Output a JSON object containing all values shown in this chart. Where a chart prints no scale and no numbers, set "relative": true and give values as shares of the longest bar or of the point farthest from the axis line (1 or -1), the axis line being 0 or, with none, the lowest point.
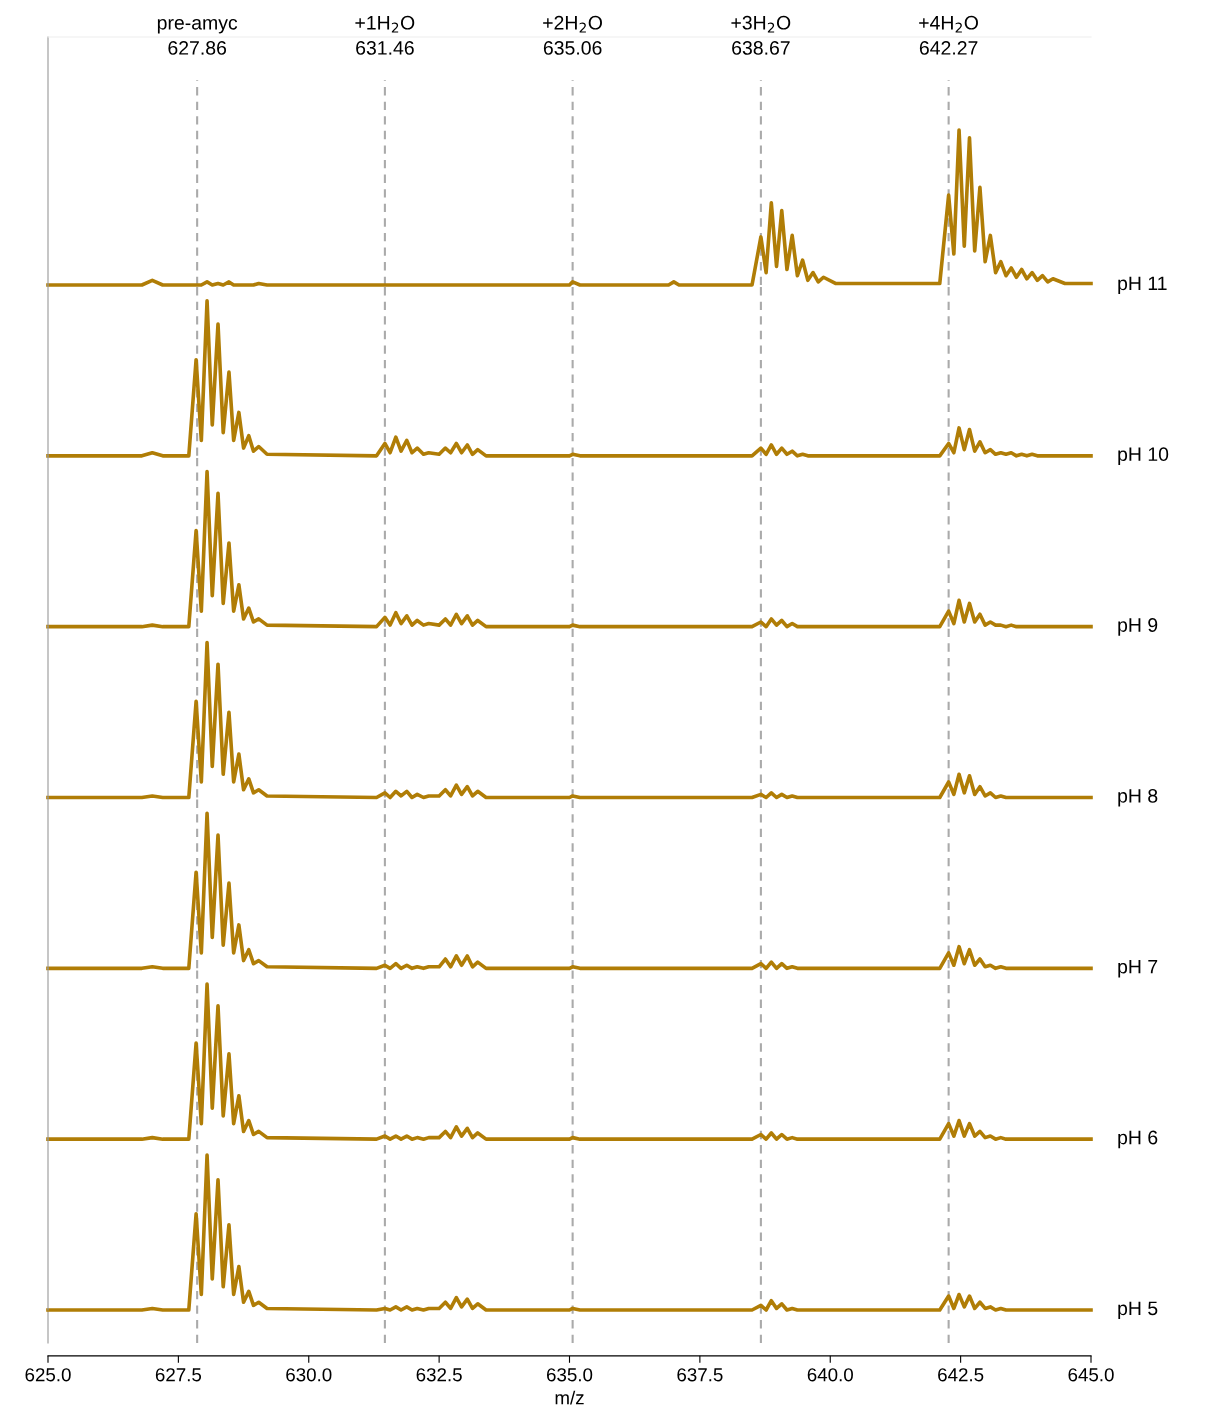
{
  "chart_data": [
    {
      "type": "line",
      "relative": true,
      "tick_labels": false,
      "xlim": [
        625,
        645
      ],
      "x": [
        625.0,
        626.8,
        627.0,
        627.2,
        627.7,
        627.84,
        627.94,
        628.05,
        628.15,
        628.26,
        628.36,
        628.47,
        628.56,
        628.66,
        628.75,
        628.85,
        628.94,
        629.04,
        629.2,
        631.3,
        631.46,
        631.56,
        631.67,
        631.77,
        631.88,
        631.98,
        632.08,
        632.2,
        632.3,
        632.5,
        632.62,
        632.72,
        632.83,
        632.93,
        633.04,
        633.14,
        633.24,
        633.4,
        635.0,
        635.06,
        635.2,
        636.9,
        637.0,
        637.1,
        638.5,
        638.67,
        638.77,
        638.87,
        638.97,
        639.07,
        639.17,
        639.27,
        639.37,
        639.47,
        639.57,
        639.67,
        639.77,
        639.87,
        640.1,
        642.1,
        642.27,
        642.37,
        642.47,
        642.57,
        642.67,
        642.77,
        642.87,
        642.97,
        643.07,
        643.17,
        643.27,
        643.37,
        643.47,
        643.57,
        643.67,
        643.77,
        643.87,
        643.97,
        644.07,
        644.17,
        644.27,
        644.5,
        645.0
      ],
      "series": [
        {
          "name": "pH 11",
          "color": "#b07d06",
          "values": [
            0,
            0,
            0.03,
            0,
            0,
            0,
            0,
            0.02,
            0,
            0.01,
            0,
            0.02,
            0,
            0,
            0,
            0,
            0,
            0.01,
            0,
            0,
            0,
            0,
            0,
            0,
            0,
            0,
            0,
            0,
            0,
            0,
            0,
            0,
            0,
            0,
            0,
            0,
            0,
            0,
            0,
            0.02,
            0,
            0,
            0.02,
            0,
            0,
            0.31,
            0.08,
            0.53,
            0.12,
            0.48,
            0.1,
            0.32,
            0.06,
            0.16,
            0.03,
            0.08,
            0.02,
            0.05,
            0.01,
            0.01,
            0.58,
            0.2,
            1,
            0.25,
            0.95,
            0.22,
            0.63,
            0.15,
            0.32,
            0.08,
            0.15,
            0.06,
            0.11,
            0.05,
            0.1,
            0.04,
            0.08,
            0.03,
            0.06,
            0.02,
            0.04,
            0.01,
            0.01
          ]
        }
      ],
      "ref_lines": [
        {
          "axis": "x",
          "value": 627.86,
          "label": "pre-amyc\n627.86",
          "color": "#aaaaaa",
          "line_style": "dashed"
        },
        {
          "axis": "x",
          "value": 631.46,
          "label": "+1H$_{2}$O\n631.46",
          "color": "#aaaaaa",
          "line_style": "dashed"
        },
        {
          "axis": "x",
          "value": 635.06,
          "label": "+2H$_{2}$O\n635.06",
          "color": "#aaaaaa",
          "line_style": "dashed"
        },
        {
          "axis": "x",
          "value": 638.67,
          "label": "+3H$_{2}$O\n638.67",
          "color": "#aaaaaa",
          "line_style": "dashed"
        },
        {
          "axis": "x",
          "value": 642.27,
          "label": "+4H$_{2}$O\n642.27",
          "color": "#aaaaaa",
          "line_style": "dashed"
        }
      ]
    },
    {
      "type": "line",
      "relative": true,
      "tick_labels": false,
      "xlim": [
        625,
        645
      ],
      "x": [
        625.0,
        626.8,
        627.0,
        627.2,
        627.7,
        627.84,
        627.94,
        628.05,
        628.15,
        628.26,
        628.36,
        628.47,
        628.56,
        628.66,
        628.75,
        628.85,
        628.94,
        629.04,
        629.2,
        631.3,
        631.46,
        631.56,
        631.67,
        631.77,
        631.88,
        631.98,
        632.08,
        632.2,
        632.3,
        632.5,
        632.62,
        632.72,
        632.83,
        632.93,
        633.04,
        633.14,
        633.24,
        633.4,
        635.0,
        635.06,
        635.2,
        636.9,
        637.0,
        637.1,
        638.5,
        638.67,
        638.77,
        638.87,
        638.97,
        639.07,
        639.17,
        639.27,
        639.37,
        639.47,
        639.57,
        639.67,
        639.77,
        639.87,
        640.1,
        642.1,
        642.27,
        642.37,
        642.47,
        642.57,
        642.67,
        642.77,
        642.87,
        642.97,
        643.07,
        643.17,
        643.27,
        643.37,
        643.47,
        643.57,
        643.67,
        643.77,
        643.87,
        643.97,
        644.07,
        644.17,
        644.27,
        644.5,
        645.0
      ],
      "series": [
        {
          "name": "pH 10",
          "color": "#b07d06",
          "values": [
            0,
            0,
            0.02,
            0,
            0,
            0.62,
            0.1,
            1,
            0.2,
            0.85,
            0.15,
            0.54,
            0.1,
            0.28,
            0.05,
            0.13,
            0.03,
            0.06,
            0.01,
            0,
            0.08,
            0.02,
            0.12,
            0.03,
            0.1,
            0.02,
            0.05,
            0.01,
            0.02,
            0.01,
            0.05,
            0.02,
            0.08,
            0.02,
            0.07,
            0.01,
            0.04,
            0,
            0,
            0.01,
            0,
            0,
            0,
            0,
            0,
            0.05,
            0.01,
            0.07,
            0.01,
            0.05,
            0.01,
            0.03,
            0,
            0.01,
            0,
            0,
            0,
            0,
            0,
            0,
            0.08,
            0.02,
            0.18,
            0.04,
            0.17,
            0.03,
            0.09,
            0.02,
            0.04,
            0.01,
            0.02,
            0.01,
            0.02,
            0,
            0.01,
            0,
            0.01,
            0,
            0,
            0,
            0,
            0,
            0
          ]
        }
      ],
      "ref_lines": [
        {
          "axis": "x",
          "value": 627.86,
          "color": "#aaaaaa",
          "line_style": "dashed"
        },
        {
          "axis": "x",
          "value": 631.46,
          "color": "#aaaaaa",
          "line_style": "dashed"
        },
        {
          "axis": "x",
          "value": 635.06,
          "color": "#aaaaaa",
          "line_style": "dashed"
        },
        {
          "axis": "x",
          "value": 638.67,
          "color": "#aaaaaa",
          "line_style": "dashed"
        },
        {
          "axis": "x",
          "value": 642.27,
          "color": "#aaaaaa",
          "line_style": "dashed"
        }
      ]
    },
    {
      "type": "line",
      "relative": true,
      "tick_labels": false,
      "xlim": [
        625,
        645
      ],
      "x": [
        625.0,
        626.8,
        627.0,
        627.2,
        627.7,
        627.84,
        627.94,
        628.05,
        628.15,
        628.26,
        628.36,
        628.47,
        628.56,
        628.66,
        628.75,
        628.85,
        628.94,
        629.04,
        629.2,
        631.3,
        631.46,
        631.56,
        631.67,
        631.77,
        631.88,
        631.98,
        632.08,
        632.2,
        632.3,
        632.5,
        632.62,
        632.72,
        632.83,
        632.93,
        633.04,
        633.14,
        633.24,
        633.4,
        635.0,
        635.06,
        635.2,
        636.9,
        637.0,
        637.1,
        638.5,
        638.67,
        638.77,
        638.87,
        638.97,
        639.07,
        639.17,
        639.27,
        639.37,
        639.47,
        639.57,
        639.67,
        639.77,
        639.87,
        640.1,
        642.1,
        642.27,
        642.37,
        642.47,
        642.57,
        642.67,
        642.77,
        642.87,
        642.97,
        643.07,
        643.17,
        643.27,
        643.37,
        643.47,
        643.57,
        643.67,
        643.77,
        643.87,
        643.97,
        644.07,
        644.17,
        644.27,
        644.5,
        645.0
      ],
      "series": [
        {
          "name": "pH 9",
          "color": "#b07d06",
          "values": [
            0,
            0,
            0.01,
            0,
            0,
            0.62,
            0.1,
            1,
            0.2,
            0.86,
            0.15,
            0.54,
            0.1,
            0.27,
            0.05,
            0.12,
            0.03,
            0.05,
            0.01,
            0,
            0.06,
            0.01,
            0.09,
            0.02,
            0.07,
            0.01,
            0.04,
            0.01,
            0.02,
            0.01,
            0.05,
            0.01,
            0.08,
            0.02,
            0.07,
            0.01,
            0.04,
            0,
            0,
            0.01,
            0,
            0,
            0,
            0,
            0,
            0.03,
            0,
            0.05,
            0.01,
            0.04,
            0,
            0.02,
            0,
            0,
            0,
            0,
            0,
            0,
            0,
            0,
            0.1,
            0.02,
            0.17,
            0.03,
            0.15,
            0.03,
            0.08,
            0.01,
            0.03,
            0.01,
            0.01,
            0,
            0.01,
            0,
            0,
            0,
            0,
            0,
            0,
            0,
            0,
            0,
            0
          ]
        }
      ],
      "ref_lines": [
        {
          "axis": "x",
          "value": 627.86,
          "color": "#aaaaaa",
          "line_style": "dashed"
        },
        {
          "axis": "x",
          "value": 631.46,
          "color": "#aaaaaa",
          "line_style": "dashed"
        },
        {
          "axis": "x",
          "value": 635.06,
          "color": "#aaaaaa",
          "line_style": "dashed"
        },
        {
          "axis": "x",
          "value": 638.67,
          "color": "#aaaaaa",
          "line_style": "dashed"
        },
        {
          "axis": "x",
          "value": 642.27,
          "color": "#aaaaaa",
          "line_style": "dashed"
        }
      ]
    },
    {
      "type": "line",
      "relative": true,
      "tick_labels": false,
      "xlim": [
        625,
        645
      ],
      "x": [
        625.0,
        626.8,
        627.0,
        627.2,
        627.7,
        627.84,
        627.94,
        628.05,
        628.15,
        628.26,
        628.36,
        628.47,
        628.56,
        628.66,
        628.75,
        628.85,
        628.94,
        629.04,
        629.2,
        631.3,
        631.46,
        631.56,
        631.67,
        631.77,
        631.88,
        631.98,
        632.08,
        632.2,
        632.3,
        632.5,
        632.62,
        632.72,
        632.83,
        632.93,
        633.04,
        633.14,
        633.24,
        633.4,
        635.0,
        635.06,
        635.2,
        636.9,
        637.0,
        637.1,
        638.5,
        638.67,
        638.77,
        638.87,
        638.97,
        639.07,
        639.17,
        639.27,
        639.37,
        639.47,
        639.57,
        639.67,
        639.77,
        639.87,
        640.1,
        642.1,
        642.27,
        642.37,
        642.47,
        642.57,
        642.67,
        642.77,
        642.87,
        642.97,
        643.07,
        643.17,
        643.27,
        643.37,
        643.47,
        643.57,
        643.67,
        643.77,
        643.87,
        643.97,
        644.07,
        644.17,
        644.27,
        644.5,
        645.0
      ],
      "series": [
        {
          "name": "pH 8",
          "color": "#b07d06",
          "values": [
            0,
            0,
            0.01,
            0,
            0,
            0.62,
            0.1,
            1,
            0.2,
            0.86,
            0.15,
            0.55,
            0.1,
            0.28,
            0.05,
            0.12,
            0.03,
            0.05,
            0.01,
            0,
            0.03,
            0,
            0.04,
            0.01,
            0.04,
            0,
            0.02,
            0,
            0.01,
            0.01,
            0.05,
            0.01,
            0.08,
            0.02,
            0.07,
            0.01,
            0.04,
            0,
            0,
            0.01,
            0,
            0,
            0,
            0,
            0,
            0.02,
            0,
            0.03,
            0,
            0.02,
            0,
            0.01,
            0,
            0,
            0,
            0,
            0,
            0,
            0,
            0,
            0.1,
            0.02,
            0.15,
            0.03,
            0.14,
            0.02,
            0.07,
            0.01,
            0.03,
            0,
            0.01,
            0,
            0,
            0,
            0,
            0,
            0,
            0,
            0,
            0,
            0,
            0,
            0
          ]
        }
      ],
      "ref_lines": [
        {
          "axis": "x",
          "value": 627.86,
          "color": "#aaaaaa",
          "line_style": "dashed"
        },
        {
          "axis": "x",
          "value": 631.46,
          "color": "#aaaaaa",
          "line_style": "dashed"
        },
        {
          "axis": "x",
          "value": 635.06,
          "color": "#aaaaaa",
          "line_style": "dashed"
        },
        {
          "axis": "x",
          "value": 638.67,
          "color": "#aaaaaa",
          "line_style": "dashed"
        },
        {
          "axis": "x",
          "value": 642.27,
          "color": "#aaaaaa",
          "line_style": "dashed"
        }
      ]
    },
    {
      "type": "line",
      "relative": true,
      "tick_labels": false,
      "xlim": [
        625,
        645
      ],
      "x": [
        625.0,
        626.8,
        627.0,
        627.2,
        627.7,
        627.84,
        627.94,
        628.05,
        628.15,
        628.26,
        628.36,
        628.47,
        628.56,
        628.66,
        628.75,
        628.85,
        628.94,
        629.04,
        629.2,
        631.3,
        631.46,
        631.56,
        631.67,
        631.77,
        631.88,
        631.98,
        632.08,
        632.2,
        632.3,
        632.5,
        632.62,
        632.72,
        632.83,
        632.93,
        633.04,
        633.14,
        633.24,
        633.4,
        635.0,
        635.06,
        635.2,
        636.9,
        637.0,
        637.1,
        638.5,
        638.67,
        638.77,
        638.87,
        638.97,
        639.07,
        639.17,
        639.27,
        639.37,
        639.47,
        639.57,
        639.67,
        639.77,
        639.87,
        640.1,
        642.1,
        642.27,
        642.37,
        642.47,
        642.57,
        642.67,
        642.77,
        642.87,
        642.97,
        643.07,
        643.17,
        643.27,
        643.37,
        643.47,
        643.57,
        643.67,
        643.77,
        643.87,
        643.97,
        644.07,
        644.17,
        644.27,
        644.5,
        645.0
      ],
      "series": [
        {
          "name": "pH 7",
          "color": "#b07d06",
          "values": [
            0,
            0,
            0.01,
            0,
            0,
            0.62,
            0.1,
            1,
            0.2,
            0.86,
            0.15,
            0.55,
            0.1,
            0.28,
            0.05,
            0.12,
            0.03,
            0.05,
            0.01,
            0,
            0.02,
            0,
            0.03,
            0,
            0.02,
            0,
            0.01,
            0,
            0.01,
            0.01,
            0.06,
            0.01,
            0.08,
            0.02,
            0.08,
            0.01,
            0.04,
            0,
            0,
            0.01,
            0,
            0,
            0,
            0,
            0,
            0.03,
            0,
            0.04,
            0,
            0.03,
            0,
            0.01,
            0,
            0,
            0,
            0,
            0,
            0,
            0,
            0,
            0.1,
            0.02,
            0.14,
            0.03,
            0.12,
            0.02,
            0.06,
            0.01,
            0.02,
            0,
            0.01,
            0,
            0,
            0,
            0,
            0,
            0,
            0,
            0,
            0,
            0,
            0,
            0
          ]
        }
      ],
      "ref_lines": [
        {
          "axis": "x",
          "value": 627.86,
          "color": "#aaaaaa",
          "line_style": "dashed"
        },
        {
          "axis": "x",
          "value": 631.46,
          "color": "#aaaaaa",
          "line_style": "dashed"
        },
        {
          "axis": "x",
          "value": 635.06,
          "color": "#aaaaaa",
          "line_style": "dashed"
        },
        {
          "axis": "x",
          "value": 638.67,
          "color": "#aaaaaa",
          "line_style": "dashed"
        },
        {
          "axis": "x",
          "value": 642.27,
          "color": "#aaaaaa",
          "line_style": "dashed"
        }
      ]
    },
    {
      "type": "line",
      "relative": true,
      "tick_labels": false,
      "xlim": [
        625,
        645
      ],
      "x": [
        625.0,
        626.8,
        627.0,
        627.2,
        627.7,
        627.84,
        627.94,
        628.05,
        628.15,
        628.26,
        628.36,
        628.47,
        628.56,
        628.66,
        628.75,
        628.85,
        628.94,
        629.04,
        629.2,
        631.3,
        631.46,
        631.56,
        631.67,
        631.77,
        631.88,
        631.98,
        632.08,
        632.2,
        632.3,
        632.5,
        632.62,
        632.72,
        632.83,
        632.93,
        633.04,
        633.14,
        633.24,
        633.4,
        635.0,
        635.06,
        635.2,
        636.9,
        637.0,
        637.1,
        638.5,
        638.67,
        638.77,
        638.87,
        638.97,
        639.07,
        639.17,
        639.27,
        639.37,
        639.47,
        639.57,
        639.67,
        639.77,
        639.87,
        640.1,
        642.1,
        642.27,
        642.37,
        642.47,
        642.57,
        642.67,
        642.77,
        642.87,
        642.97,
        643.07,
        643.17,
        643.27,
        643.37,
        643.47,
        643.57,
        643.67,
        643.77,
        643.87,
        643.97,
        644.07,
        644.17,
        644.27,
        644.5,
        645.0
      ],
      "series": [
        {
          "name": "pH 6",
          "color": "#b07d06",
          "values": [
            0,
            0,
            0.01,
            0,
            0,
            0.62,
            0.1,
            1,
            0.2,
            0.86,
            0.15,
            0.55,
            0.1,
            0.28,
            0.05,
            0.12,
            0.03,
            0.05,
            0.01,
            0,
            0.02,
            0,
            0.02,
            0,
            0.02,
            0,
            0.01,
            0,
            0.01,
            0.01,
            0.05,
            0.01,
            0.08,
            0.02,
            0.07,
            0.01,
            0.04,
            0,
            0,
            0.01,
            0,
            0,
            0,
            0,
            0,
            0.03,
            0,
            0.04,
            0,
            0.03,
            0,
            0.01,
            0,
            0,
            0,
            0,
            0,
            0,
            0,
            0,
            0.1,
            0.02,
            0.12,
            0.02,
            0.1,
            0.02,
            0.05,
            0.01,
            0.02,
            0,
            0.01,
            0,
            0,
            0,
            0,
            0,
            0,
            0,
            0,
            0,
            0,
            0,
            0
          ]
        }
      ],
      "ref_lines": [
        {
          "axis": "x",
          "value": 627.86,
          "color": "#aaaaaa",
          "line_style": "dashed"
        },
        {
          "axis": "x",
          "value": 631.46,
          "color": "#aaaaaa",
          "line_style": "dashed"
        },
        {
          "axis": "x",
          "value": 635.06,
          "color": "#aaaaaa",
          "line_style": "dashed"
        },
        {
          "axis": "x",
          "value": 638.67,
          "color": "#aaaaaa",
          "line_style": "dashed"
        },
        {
          "axis": "x",
          "value": 642.27,
          "color": "#aaaaaa",
          "line_style": "dashed"
        }
      ]
    },
    {
      "type": "line",
      "relative": true,
      "tick_labels": "x",
      "xlim": [
        625,
        645
      ],
      "xlabel": "m/z",
      "xticks": [
        {
          "value": 625,
          "label": "625.0"
        },
        {
          "value": 627.5,
          "label": "627.5"
        },
        {
          "value": 630,
          "label": "630.0"
        },
        {
          "value": 632.5,
          "label": "632.5"
        },
        {
          "value": 635,
          "label": "635.0"
        },
        {
          "value": 637.5,
          "label": "637.5"
        },
        {
          "value": 640,
          "label": "640.0"
        },
        {
          "value": 642.5,
          "label": "642.5"
        },
        {
          "value": 645,
          "label": "645.0"
        }
      ],
      "x": [
        625.0,
        626.8,
        627.0,
        627.2,
        627.7,
        627.84,
        627.94,
        628.05,
        628.15,
        628.26,
        628.36,
        628.47,
        628.56,
        628.66,
        628.75,
        628.85,
        628.94,
        629.04,
        629.2,
        631.3,
        631.46,
        631.56,
        631.67,
        631.77,
        631.88,
        631.98,
        632.08,
        632.2,
        632.3,
        632.5,
        632.62,
        632.72,
        632.83,
        632.93,
        633.04,
        633.14,
        633.24,
        633.4,
        635.0,
        635.06,
        635.2,
        636.9,
        637.0,
        637.1,
        638.5,
        638.67,
        638.77,
        638.87,
        638.97,
        639.07,
        639.17,
        639.27,
        639.37,
        639.47,
        639.57,
        639.67,
        639.77,
        639.87,
        640.1,
        642.1,
        642.27,
        642.37,
        642.47,
        642.57,
        642.67,
        642.77,
        642.87,
        642.97,
        643.07,
        643.17,
        643.27,
        643.37,
        643.47,
        643.57,
        643.67,
        643.77,
        643.87,
        643.97,
        644.07,
        644.17,
        644.27,
        644.5,
        645.0
      ],
      "series": [
        {
          "name": "pH 5",
          "color": "#b07d06",
          "values": [
            0,
            0,
            0.01,
            0,
            0,
            0.62,
            0.1,
            1,
            0.2,
            0.84,
            0.15,
            0.55,
            0.1,
            0.28,
            0.05,
            0.12,
            0.03,
            0.05,
            0.01,
            0,
            0.01,
            0,
            0.02,
            0,
            0.02,
            0,
            0.01,
            0,
            0.01,
            0.01,
            0.05,
            0.01,
            0.08,
            0.02,
            0.07,
            0.01,
            0.04,
            0,
            0,
            0.01,
            0,
            0,
            0,
            0,
            0,
            0.03,
            0,
            0.06,
            0.01,
            0.04,
            0,
            0.01,
            0,
            0,
            0,
            0,
            0,
            0,
            0,
            0,
            0.09,
            0.01,
            0.1,
            0.02,
            0.09,
            0.01,
            0.05,
            0.01,
            0.02,
            0,
            0.01,
            0,
            0,
            0,
            0,
            0,
            0,
            0,
            0,
            0,
            0,
            0,
            0
          ]
        }
      ],
      "ref_lines": [
        {
          "axis": "x",
          "value": 627.86,
          "color": "#aaaaaa",
          "line_style": "dashed"
        },
        {
          "axis": "x",
          "value": 631.46,
          "color": "#aaaaaa",
          "line_style": "dashed"
        },
        {
          "axis": "x",
          "value": 635.06,
          "color": "#aaaaaa",
          "line_style": "dashed"
        },
        {
          "axis": "x",
          "value": 638.67,
          "color": "#aaaaaa",
          "line_style": "dashed"
        },
        {
          "axis": "x",
          "value": 642.27,
          "color": "#aaaaaa",
          "line_style": "dashed"
        }
      ]
    }
  ]
}
